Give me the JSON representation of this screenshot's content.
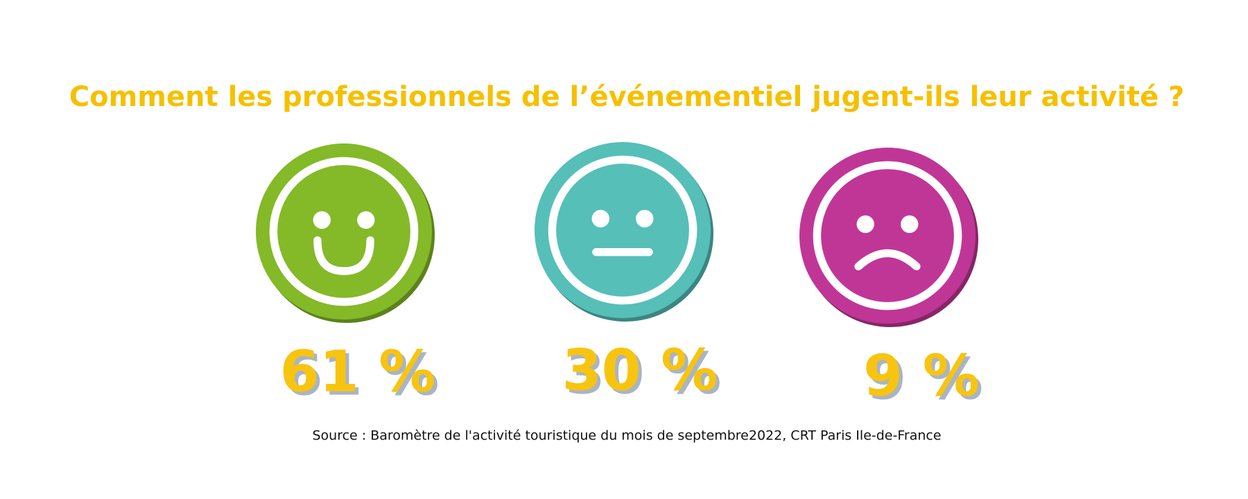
{
  "chart_data": {
    "type": "pictogram",
    "title": "Comment les professionnels de l’événementiel jugent-ils leur activité ?",
    "values": [
      61,
      30,
      9
    ],
    "value_labels": [
      "61 %",
      "30 %",
      "9 %"
    ],
    "colors": [
      "#84b928",
      "#55bfb8",
      "#c03696"
    ],
    "source": "Source : Baromètre de l'activité touristique du mois de septembre2022, CRT Paris Ile-de-France"
  }
}
